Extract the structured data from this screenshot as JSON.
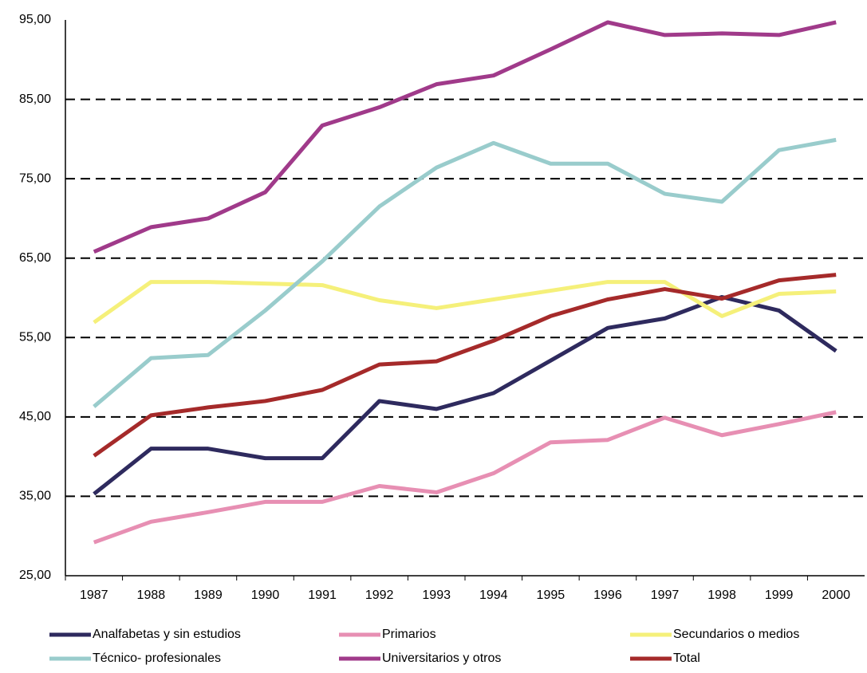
{
  "chart_data": {
    "type": "line",
    "categories": [
      "1987",
      "1988",
      "1989",
      "1990",
      "1991",
      "1992",
      "1993",
      "1994",
      "1995",
      "1996",
      "1997",
      "1998",
      "1999",
      "2000"
    ],
    "ylim": [
      25,
      95
    ],
    "yticks": [
      {
        "value": 25,
        "label": "25,00"
      },
      {
        "value": 35,
        "label": "35,00"
      },
      {
        "value": 45,
        "label": "45,00"
      },
      {
        "value": 55,
        "label": "55,00"
      },
      {
        "value": 65,
        "label": "65,00"
      },
      {
        "value": 75,
        "label": "75,00"
      },
      {
        "value": 85,
        "label": "85,00"
      },
      {
        "value": 95,
        "label": "95,00"
      }
    ],
    "grid": true,
    "series": [
      {
        "name": "Analfabetas y sin estudios",
        "color": "#2e2a5e",
        "values": [
          35.3,
          41.0,
          41.0,
          39.8,
          39.8,
          47.0,
          46.0,
          48.0,
          52.1,
          56.2,
          57.4,
          60.1,
          58.4,
          53.3
        ]
      },
      {
        "name": "Primarios",
        "color": "#e78fb3",
        "values": [
          29.2,
          31.8,
          33.0,
          34.3,
          34.3,
          36.3,
          35.5,
          37.9,
          41.8,
          42.1,
          44.9,
          42.7,
          44.1,
          45.6
        ]
      },
      {
        "name": "Secundarios o medios",
        "color": "#f5f07a",
        "values": [
          56.9,
          62.0,
          62.0,
          61.8,
          61.6,
          59.7,
          58.7,
          59.8,
          60.9,
          62.0,
          62.0,
          57.7,
          60.5,
          60.8
        ]
      },
      {
        "name": "Técnico- profesionales",
        "color": "#99cccc",
        "values": [
          46.3,
          52.4,
          52.8,
          58.4,
          64.6,
          71.5,
          76.4,
          79.5,
          76.9,
          76.9,
          73.1,
          72.1,
          78.6,
          79.9
        ]
      },
      {
        "name": "Universitarios y otros",
        "color": "#a03a8a",
        "values": [
          65.8,
          68.9,
          70.0,
          73.3,
          81.7,
          84.0,
          86.9,
          88.0,
          91.3,
          94.7,
          93.1,
          93.3,
          93.1,
          94.7
        ]
      },
      {
        "name": "Total",
        "color": "#a52a2a",
        "values": [
          40.1,
          45.2,
          46.2,
          47.0,
          48.4,
          51.6,
          52.0,
          54.6,
          57.7,
          59.8,
          61.1,
          59.9,
          62.2,
          62.9
        ]
      }
    ]
  }
}
